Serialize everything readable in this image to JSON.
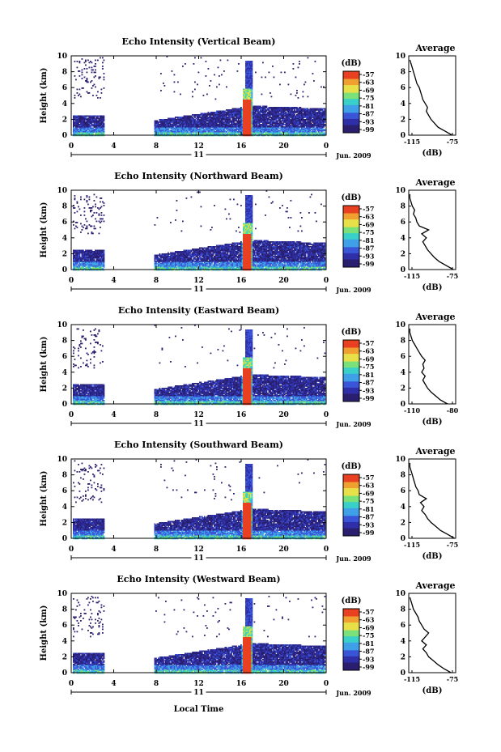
{
  "figure": {
    "xlabel": "Local Time",
    "date_label": "Jun. 2009",
    "day_label": "11"
  },
  "colorbar": {
    "unit": "(dB)",
    "ticks": [
      "-57",
      "-63",
      "-69",
      "-75",
      "-81",
      "-87",
      "-93",
      "-99"
    ],
    "colors": [
      "#2a1f6e",
      "#2f2fa8",
      "#3a55d8",
      "#3fa0e8",
      "#38d0c8",
      "#7ae07a",
      "#e8e048",
      "#f0a030",
      "#e84020"
    ]
  },
  "chart_data": [
    {
      "type": "heatmap",
      "title": "Echo Intensity (Vertical Beam)",
      "xlabel": "",
      "ylabel": "Height (km)",
      "xlim": [
        0,
        24
      ],
      "ylim": [
        0,
        10
      ],
      "x_ticks": [
        "0",
        "4",
        "8",
        "12",
        "16",
        "20",
        "0"
      ],
      "y_ticks": [
        "0",
        "2",
        "4",
        "6",
        "8",
        "10"
      ],
      "colorbar_label": "(dB)",
      "data_gap_hours": [
        [
          3.1,
          7.8
        ]
      ],
      "precip_band_hours": [
        16.0,
        17.0
      ],
      "profile": {
        "title": "Average",
        "xlabel": "(dB)",
        "xlim": [
          -115,
          -75
        ],
        "x_ticks": [
          "-115",
          "-75"
        ],
        "heights": [
          0,
          0.5,
          1,
          1.5,
          2,
          2.5,
          3,
          3.5,
          4,
          4.5,
          5,
          5.5,
          6,
          6.5,
          7,
          7.5,
          8,
          8.5,
          9,
          9.5
        ],
        "values": [
          -78,
          -84,
          -90,
          -93,
          -96,
          -98,
          -100,
          -99,
          -101,
          -103,
          -104,
          -105,
          -106,
          -108,
          -109,
          -110,
          -111,
          -112,
          -113,
          -114
        ]
      }
    },
    {
      "type": "heatmap",
      "title": "Echo Intensity (Northward Beam)",
      "xlabel": "",
      "ylabel": "Height (km)",
      "xlim": [
        0,
        24
      ],
      "ylim": [
        0,
        10
      ],
      "x_ticks": [
        "0",
        "4",
        "8",
        "12",
        "16",
        "20",
        "0"
      ],
      "y_ticks": [
        "0",
        "2",
        "4",
        "6",
        "8",
        "10"
      ],
      "colorbar_label": "(dB)",
      "data_gap_hours": [
        [
          3.1,
          7.8
        ]
      ],
      "precip_band_hours": [
        16.0,
        17.0
      ],
      "profile": {
        "title": "Average",
        "xlabel": "(dB)",
        "xlim": [
          -115,
          -75
        ],
        "x_ticks": [
          "-115",
          "-75"
        ],
        "heights": [
          0,
          0.5,
          1,
          1.5,
          2,
          2.5,
          3,
          3.5,
          4,
          4.5,
          5,
          5.5,
          6,
          6.5,
          7,
          7.5,
          8,
          8.5,
          9,
          9.5
        ],
        "values": [
          -77,
          -83,
          -89,
          -93,
          -96,
          -99,
          -101,
          -103,
          -100,
          -104,
          -98,
          -106,
          -108,
          -109,
          -111,
          -110,
          -112,
          -113,
          -114,
          -114
        ]
      }
    },
    {
      "type": "heatmap",
      "title": "Echo Intensity (Eastward Beam)",
      "xlabel": "",
      "ylabel": "Height (km)",
      "xlim": [
        0,
        24
      ],
      "ylim": [
        0,
        10
      ],
      "x_ticks": [
        "0",
        "4",
        "8",
        "12",
        "16",
        "20",
        "0"
      ],
      "y_ticks": [
        "0",
        "2",
        "4",
        "6",
        "8",
        "10"
      ],
      "colorbar_label": "(dB)",
      "data_gap_hours": [
        [
          3.1,
          7.8
        ]
      ],
      "precip_band_hours": [
        16.0,
        17.0
      ],
      "profile": {
        "title": "Average",
        "xlabel": "(dB)",
        "xlim": [
          -115,
          -75
        ],
        "x_ticks": [
          "-110",
          "-80"
        ],
        "heights": [
          0,
          0.5,
          1,
          1.5,
          2,
          2.5,
          3,
          3.5,
          4,
          4.5,
          5,
          5.5,
          6,
          6.5,
          7,
          7.5,
          8,
          8.5,
          9,
          9.5
        ],
        "values": [
          -82,
          -88,
          -92,
          -96,
          -99,
          -101,
          -103,
          -101,
          -104,
          -102,
          -103,
          -101,
          -104,
          -106,
          -108,
          -110,
          -112,
          -113,
          -114,
          -114
        ]
      }
    },
    {
      "type": "heatmap",
      "title": "Echo Intensity (Southward Beam)",
      "xlabel": "",
      "ylabel": "Height (km)",
      "xlim": [
        0,
        24
      ],
      "ylim": [
        0,
        10
      ],
      "x_ticks": [
        "0",
        "4",
        "8",
        "12",
        "16",
        "20",
        "0"
      ],
      "y_ticks": [
        "0",
        "2",
        "4",
        "6",
        "8",
        "10"
      ],
      "colorbar_label": "(dB)",
      "data_gap_hours": [
        [
          3.1,
          7.8
        ]
      ],
      "precip_band_hours": [
        16.0,
        17.0
      ],
      "profile": {
        "title": "Average",
        "xlabel": "(dB)",
        "xlim": [
          -115,
          -75
        ],
        "x_ticks": [
          "-115",
          "-75"
        ],
        "heights": [
          0,
          0.5,
          1,
          1.5,
          2,
          2.5,
          3,
          3.5,
          4,
          4.5,
          5,
          5.5,
          6,
          6.5,
          7,
          7.5,
          8,
          8.5,
          9,
          9.5
        ],
        "values": [
          -76,
          -82,
          -88,
          -92,
          -96,
          -99,
          -101,
          -104,
          -102,
          -105,
          -100,
          -106,
          -107,
          -109,
          -110,
          -111,
          -112,
          -113,
          -114,
          -114
        ]
      }
    },
    {
      "type": "heatmap",
      "title": "Echo Intensity (Westward Beam)",
      "xlabel": "",
      "ylabel": "Height (km)",
      "xlim": [
        0,
        24
      ],
      "ylim": [
        0,
        10
      ],
      "x_ticks": [
        "0",
        "4",
        "8",
        "12",
        "16",
        "20",
        "0"
      ],
      "y_ticks": [
        "0",
        "2",
        "4",
        "6",
        "8",
        "10"
      ],
      "colorbar_label": "(dB)",
      "data_gap_hours": [
        [
          3.1,
          7.8
        ]
      ],
      "precip_band_hours": [
        16.0,
        17.0
      ],
      "profile": {
        "title": "Average",
        "xlabel": "(dB)",
        "xlim": [
          -115,
          -75
        ],
        "x_ticks": [
          "-115",
          "-75"
        ],
        "heights": [
          0,
          0.5,
          1,
          1.5,
          2,
          2.5,
          3,
          3.5,
          4,
          4.5,
          5,
          5.5,
          6,
          6.5,
          7,
          7.5,
          8,
          8.5,
          9,
          9.5
        ],
        "values": [
          -79,
          -85,
          -90,
          -94,
          -98,
          -100,
          -103,
          -100,
          -104,
          -101,
          -98,
          -102,
          -104,
          -106,
          -107,
          -109,
          -111,
          -112,
          -113,
          -114
        ]
      }
    }
  ]
}
